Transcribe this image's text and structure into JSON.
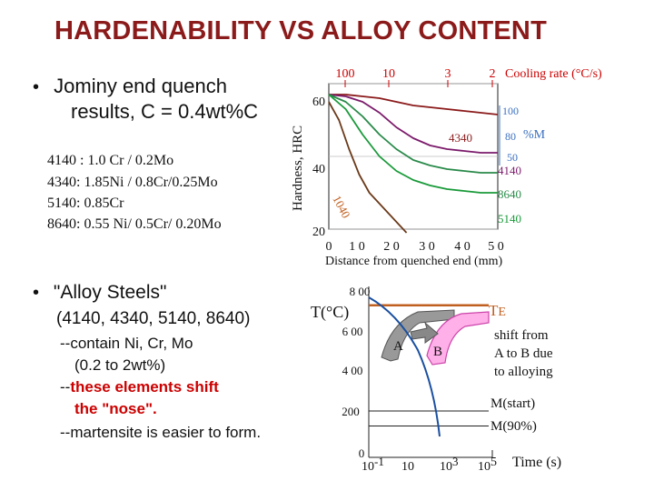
{
  "title": "HARDENABILITY VS ALLOY CONTENT",
  "bullet1": {
    "line1": "Jominy end quench",
    "line2": "results, C = 0.4wt%C"
  },
  "alloys": [
    "4140 : 1.0 Cr / 0.2Mo",
    "4340:  1.85Ni / 0.8Cr/0.25Mo",
    "5140:  0.85Cr",
    "8640:  0.55 Ni/ 0.5Cr/ 0.20Mo"
  ],
  "bullet2": {
    "line1": "\"Alloy Steels\"",
    "line2": "(4140, 4340, 5140, 8640)",
    "line3": "--contain Ni, Cr, Mo",
    "line4": "(0.2 to 2wt%)",
    "line5_prefix": "--",
    "line5_red": "these elements shift",
    "line6_red": "the \"nose\".",
    "line7": "--martensite is easier to form."
  },
  "colors": {
    "title": "#8b1a1a",
    "red": "#cc0000",
    "s4340": "#8b1a1a",
    "s4140": "#7b1b6b",
    "s8640": "#2a8a4a",
    "s5140": "#1a9a3a",
    "s1040": "#6b3a1a",
    "blue": "#1a4fa0",
    "orange": "#c06020",
    "pink": "#ffb0e8"
  },
  "chart_data": [
    {
      "type": "line",
      "xlabel": "Distance from quenched end (mm)",
      "ylabel": "Hardness, HRC",
      "xlim": [
        0,
        50
      ],
      "ylim": [
        20,
        60
      ],
      "x_ticks": [
        "0",
        "1 0",
        "2 0",
        "3 0",
        "4 0",
        "5 0"
      ],
      "y_ticks": [
        "20",
        "40",
        "60"
      ],
      "top_axis": {
        "label": "Cooling rate (°C/s)",
        "ticks": [
          "100",
          "10",
          "3",
          "2"
        ]
      },
      "right_axis": {
        "label": "%M",
        "ticks": [
          "100",
          "80",
          "50"
        ]
      },
      "series": [
        {
          "name": "4340",
          "x": [
            0,
            5,
            10,
            15,
            20,
            25,
            30,
            35,
            40,
            45,
            50
          ],
          "y": [
            57,
            57,
            56.5,
            56,
            55,
            54,
            53.5,
            53,
            52.5,
            52,
            51.5
          ]
        },
        {
          "name": "4140",
          "x": [
            0,
            5,
            10,
            15,
            20,
            25,
            30,
            35,
            40,
            45,
            50
          ],
          "y": [
            57,
            56.5,
            55,
            52,
            48,
            45,
            43,
            42,
            41.5,
            41,
            41
          ]
        },
        {
          "name": "8640",
          "x": [
            0,
            5,
            10,
            15,
            20,
            25,
            30,
            35,
            40,
            45,
            50
          ],
          "y": [
            57,
            55,
            51,
            46,
            42,
            39,
            37.5,
            36.5,
            36,
            35.5,
            35.5
          ]
        },
        {
          "name": "5140",
          "x": [
            0,
            5,
            10,
            15,
            20,
            25,
            30,
            35,
            40,
            45,
            50
          ],
          "y": [
            57,
            53,
            46,
            40,
            36,
            33.5,
            32,
            31,
            30.5,
            30,
            30
          ]
        },
        {
          "name": "1040",
          "x": [
            0,
            3,
            6,
            9,
            12,
            15,
            18,
            21,
            23
          ],
          "y": [
            55,
            50,
            42,
            35,
            30,
            27,
            24,
            21,
            19
          ]
        }
      ]
    },
    {
      "type": "line",
      "ylabel": "T(°C)",
      "xlabel": "Time (s)",
      "ylim": [
        0,
        800
      ],
      "y_ticks": [
        "0",
        "200",
        "4 00",
        "6 00",
        "8 00"
      ],
      "x_ticks": [
        {
          "base": "10",
          "exp": "-1"
        },
        {
          "base": "10",
          "exp": ""
        },
        {
          "base": "10",
          "exp": "3"
        },
        {
          "base": "10",
          "exp": "5"
        }
      ],
      "labels": {
        "te": "T",
        "te_sub": "E",
        "a": "A",
        "b": "B",
        "shift1": "shift from",
        "shift2": "A to B due",
        "shift3": "to alloying",
        "mstart": "M(start)",
        "m90": "M(90%)"
      },
      "series": [
        {
          "name": "TE",
          "values": [
            727
          ]
        },
        {
          "name": "M(start)",
          "values": [
            222
          ]
        },
        {
          "name": "M(90%)",
          "values": [
            150
          ]
        }
      ]
    }
  ]
}
